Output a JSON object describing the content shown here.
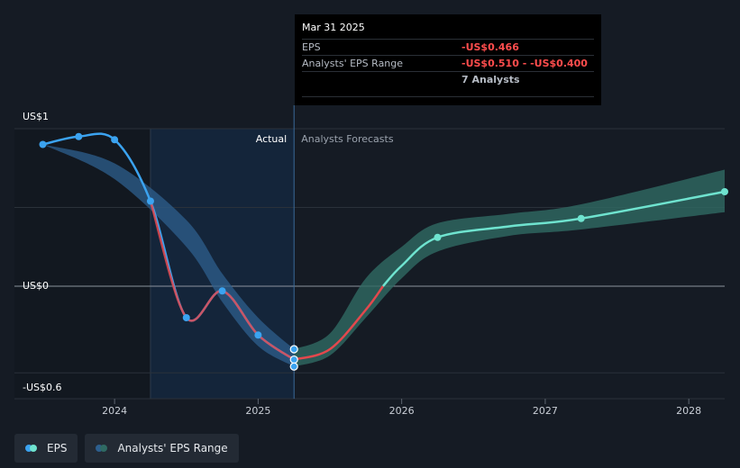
{
  "chart_data": {
    "type": "line",
    "y_unit_labels": [
      "US$1",
      "US$0",
      "-US$0.6"
    ],
    "ylim": [
      -0.6,
      1.0
    ],
    "xlim": [
      2023.5,
      2028.25
    ],
    "x_ticks": [
      {
        "value": 2024,
        "label": "2024"
      },
      {
        "value": 2025,
        "label": "2025"
      },
      {
        "value": 2026,
        "label": "2026"
      },
      {
        "value": 2027,
        "label": "2027"
      },
      {
        "value": 2028,
        "label": "2028"
      }
    ],
    "y_gridlines": [
      1.0,
      0.5,
      0.0,
      -0.55
    ],
    "region_labels": {
      "actual": "Actual",
      "forecast": "Analysts Forecasts"
    },
    "highlight_start": 2024.25,
    "divider_x": 2025.25,
    "series": [
      {
        "name": "EPS",
        "color": "#3ba3f0",
        "points": [
          {
            "x": 2023.5,
            "y": 0.9
          },
          {
            "x": 2023.75,
            "y": 0.95
          },
          {
            "x": 2024.0,
            "y": 0.93
          },
          {
            "x": 2024.25,
            "y": 0.54
          },
          {
            "x": 2024.5,
            "y": -0.2
          },
          {
            "x": 2024.75,
            "y": -0.03
          },
          {
            "x": 2025.0,
            "y": -0.31
          },
          {
            "x": 2025.25,
            "y": -0.466
          }
        ]
      },
      {
        "name": "EPS forecast",
        "color_negative": "#e3484d",
        "color_positive": "#6fe3cf",
        "points": [
          {
            "x": 2025.25,
            "y": -0.466
          },
          {
            "x": 2025.5,
            "y": -0.4
          },
          {
            "x": 2025.75,
            "y": -0.15
          },
          {
            "x": 2025.87,
            "y": 0.0
          },
          {
            "x": 2026.0,
            "y": 0.13
          },
          {
            "x": 2026.25,
            "y": 0.31
          },
          {
            "x": 2026.75,
            "y": 0.38
          },
          {
            "x": 2027.25,
            "y": 0.43
          },
          {
            "x": 2028.25,
            "y": 0.6
          }
        ]
      },
      {
        "name": "Analysts' EPS Range",
        "color_past": "#2d5f8e",
        "color_future": "#2f6a63",
        "band": [
          {
            "x": 2023.5,
            "low": 0.9,
            "high": 0.9
          },
          {
            "x": 2024.0,
            "low": 0.68,
            "high": 0.78
          },
          {
            "x": 2024.5,
            "low": 0.25,
            "high": 0.42
          },
          {
            "x": 2024.75,
            "low": -0.1,
            "high": 0.08
          },
          {
            "x": 2025.0,
            "low": -0.38,
            "high": -0.2
          },
          {
            "x": 2025.25,
            "low": -0.51,
            "high": -0.4
          },
          {
            "x": 2025.5,
            "low": -0.44,
            "high": -0.3
          },
          {
            "x": 2025.75,
            "low": -0.2,
            "high": 0.05
          },
          {
            "x": 2026.0,
            "low": 0.05,
            "high": 0.25
          },
          {
            "x": 2026.25,
            "low": 0.22,
            "high": 0.4
          },
          {
            "x": 2026.75,
            "low": 0.32,
            "high": 0.46
          },
          {
            "x": 2027.25,
            "low": 0.36,
            "high": 0.52
          },
          {
            "x": 2028.25,
            "low": 0.47,
            "high": 0.74
          }
        ]
      }
    ],
    "tooltip_markers": [
      {
        "x": 2025.25,
        "y": -0.4
      },
      {
        "x": 2025.25,
        "y": -0.466
      },
      {
        "x": 2025.25,
        "y": -0.51
      }
    ],
    "forecast_markers": [
      {
        "x": 2026.25,
        "y": 0.31
      },
      {
        "x": 2027.25,
        "y": 0.43
      },
      {
        "x": 2028.25,
        "y": 0.6
      }
    ]
  },
  "tooltip": {
    "date": "Mar 31 2025",
    "eps_label": "EPS",
    "eps_value": "-US$0.466",
    "range_label": "Analysts' EPS Range",
    "range_value": "-US$0.510 - -US$0.400",
    "analysts": "7 Analysts"
  },
  "legend": {
    "eps_label": "EPS",
    "range_label": "Analysts' EPS Range",
    "eps_colors": [
      "#3ba3f0",
      "#6fe3cf"
    ],
    "range_colors": [
      "#2d5f8e",
      "#2f6a63"
    ]
  }
}
